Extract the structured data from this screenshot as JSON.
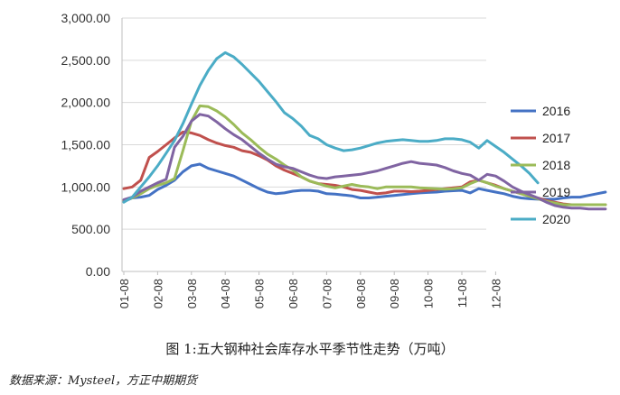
{
  "chart_data": {
    "type": "line",
    "title": "",
    "xlabel": "",
    "ylabel": "",
    "ylim": [
      0,
      3000
    ],
    "yticks": [
      "0.00",
      "500.00",
      "1,000.00",
      "1,500.00",
      "2,000.00",
      "2,500.00",
      "3,000.00"
    ],
    "xticks": [
      "01-08",
      "02-08",
      "03-08",
      "04-08",
      "05-08",
      "06-08",
      "07-08",
      "08-08",
      "09-08",
      "10-08",
      "11-08",
      "12-08"
    ],
    "grid": "horizontal",
    "legend": "right",
    "x_points_per_month": 4,
    "series": [
      {
        "name": "2016",
        "color": "#4472C4",
        "values": [
          830,
          870,
          880,
          900,
          970,
          1020,
          1080,
          1180,
          1250,
          1270,
          1220,
          1190,
          1160,
          1130,
          1080,
          1030,
          980,
          940,
          920,
          930,
          950,
          960,
          960,
          950,
          920,
          915,
          905,
          895,
          870,
          870,
          880,
          890,
          900,
          910,
          920,
          930,
          935,
          940,
          950,
          955,
          960,
          930,
          980,
          960,
          940,
          920,
          890,
          870,
          860,
          855,
          855,
          855,
          870,
          880,
          880,
          900,
          920,
          940
        ]
      },
      {
        "name": "2017",
        "color": "#C0504D",
        "values": [
          980,
          1000,
          1080,
          1350,
          1420,
          1500,
          1580,
          1650,
          1640,
          1610,
          1560,
          1520,
          1490,
          1470,
          1430,
          1410,
          1370,
          1320,
          1250,
          1200,
          1160,
          1120,
          1070,
          1040,
          1030,
          1020,
          1000,
          970,
          960,
          940,
          920,
          930,
          950,
          950,
          945,
          950,
          960,
          970,
          980,
          990,
          1000,
          1060,
          1080,
          1050,
          1020,
          980,
          950,
          920,
          890,
          870,
          840,
          820,
          800,
          790,
          790,
          790,
          790,
          790
        ]
      },
      {
        "name": "2018",
        "color": "#9BBB59",
        "values": [
          840,
          870,
          920,
          980,
          1020,
          1050,
          1100,
          1430,
          1780,
          1960,
          1950,
          1900,
          1830,
          1740,
          1640,
          1560,
          1470,
          1390,
          1330,
          1260,
          1200,
          1120,
          1070,
          1040,
          1010,
          990,
          1010,
          1030,
          1010,
          1000,
          980,
          1000,
          1000,
          1000,
          1000,
          990,
          985,
          980,
          975,
          980,
          990,
          1040,
          1080,
          1050,
          1010,
          980,
          950,
          920,
          890,
          860,
          830,
          810,
          790,
          790,
          790,
          790,
          790,
          790
        ]
      },
      {
        "name": "2019",
        "color": "#8064A2",
        "values": [
          850,
          880,
          950,
          1000,
          1050,
          1090,
          1470,
          1600,
          1780,
          1860,
          1840,
          1770,
          1690,
          1620,
          1560,
          1480,
          1400,
          1330,
          1270,
          1240,
          1220,
          1180,
          1140,
          1110,
          1100,
          1120,
          1130,
          1140,
          1150,
          1170,
          1190,
          1220,
          1250,
          1280,
          1300,
          1280,
          1270,
          1260,
          1230,
          1190,
          1160,
          1140,
          1080,
          1150,
          1130,
          1070,
          1000,
          950,
          910,
          870,
          820,
          780,
          760,
          750,
          750,
          740,
          740,
          740
        ]
      },
      {
        "name": "2020",
        "color": "#4BACC6",
        "values": [
          820,
          880,
          1000,
          1120,
          1250,
          1400,
          1550,
          1750,
          1980,
          2200,
          2380,
          2520,
          2590,
          2540,
          2450,
          2350,
          2250,
          2130,
          2010,
          1880,
          1810,
          1720,
          1610,
          1570,
          1500,
          1460,
          1430,
          1440,
          1460,
          1490,
          1520,
          1540,
          1550,
          1560,
          1550,
          1540,
          1540,
          1550,
          1570,
          1570,
          1560,
          1530,
          1460,
          1550,
          1480,
          1410,
          1330,
          1250,
          1160,
          1050
        ]
      }
    ]
  },
  "caption": "图 1:五大钢种社会库存水平季节性走势（万吨）",
  "source": "数据来源：Mysteel，方正中期期货"
}
